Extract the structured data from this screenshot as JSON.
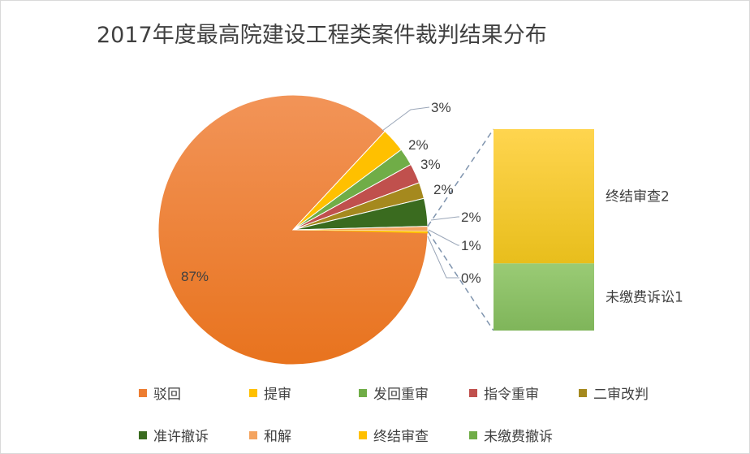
{
  "chart_data": {
    "type": "pie",
    "subtype": "pie-of-pie",
    "title": "2017年度最高院建设工程类案件裁判结果分布",
    "slices": [
      {
        "category": "驳回",
        "value": 87,
        "label": "87%",
        "color": "#ED7D31"
      },
      {
        "category": "提审",
        "value": 3,
        "label": "3%",
        "color": "#FFC000"
      },
      {
        "category": "发回重审",
        "value": 2,
        "label": "2%",
        "color": "#70AD47"
      },
      {
        "category": "指令重审",
        "value": 3,
        "label": "3%",
        "color": "#C0504D"
      },
      {
        "category": "二审改判",
        "value": 2,
        "label": "2%",
        "color": "#A5891E"
      },
      {
        "category": "准许撤诉",
        "value": 2,
        "label": "2%",
        "color": "#3A6B1F"
      },
      {
        "category": "和解",
        "value": 1,
        "label": "1%",
        "color": "#F4A460"
      },
      {
        "category": "终结审查",
        "value": 0,
        "label": "0%",
        "color": "#FFC000"
      },
      {
        "category": "未缴费撤诉",
        "value": 0,
        "label": "",
        "color": "#70AD47"
      }
    ],
    "secondary_bar": [
      {
        "label": "终结审查2",
        "value": 2,
        "color": "#FFC000"
      },
      {
        "label": "未缴费诉讼1",
        "value": 1,
        "color": "#70AD47"
      }
    ],
    "legend": [
      "驳回",
      "提审",
      "发回重审",
      "指令重审",
      "二审改判",
      "准许撤诉",
      "和解",
      "终结审查",
      "未缴费撤诉"
    ],
    "legend_colors": [
      "#ED7D31",
      "#FFC000",
      "#70AD47",
      "#C0504D",
      "#A5891E",
      "#3A6B1F",
      "#F4A460",
      "#FFC000",
      "#70AD47"
    ],
    "legend_position": "bottom"
  }
}
